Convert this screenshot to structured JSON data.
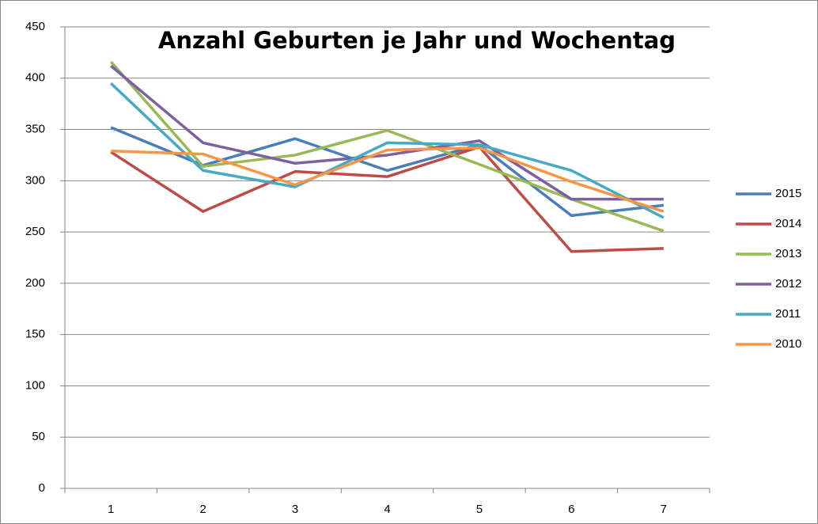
{
  "chart_data": {
    "type": "line",
    "title": "Anzahl Geburten je Jahr und Wochentag",
    "categories": [
      1,
      2,
      3,
      4,
      5,
      6,
      7
    ],
    "series": [
      {
        "name": "2015",
        "color": "#4a7ebb",
        "values": [
          352,
          315,
          341,
          310,
          335,
          266,
          276
        ]
      },
      {
        "name": "2014",
        "color": "#be4b48",
        "values": [
          328,
          270,
          309,
          304,
          333,
          231,
          234
        ]
      },
      {
        "name": "2013",
        "color": "#98b954",
        "values": [
          416,
          314,
          325,
          349,
          316,
          282,
          251
        ]
      },
      {
        "name": "2012",
        "color": "#7d60a0",
        "values": [
          412,
          337,
          317,
          325,
          339,
          282,
          282
        ]
      },
      {
        "name": "2011",
        "color": "#46aac5",
        "values": [
          395,
          310,
          294,
          337,
          335,
          310,
          264
        ]
      },
      {
        "name": "2010",
        "color": "#f79646",
        "values": [
          329,
          326,
          296,
          330,
          332,
          299,
          270
        ]
      }
    ],
    "ylim": [
      0,
      450
    ],
    "yticks": [
      0,
      50,
      100,
      150,
      200,
      250,
      300,
      350,
      400,
      450
    ],
    "grid": true,
    "legend": "right"
  }
}
